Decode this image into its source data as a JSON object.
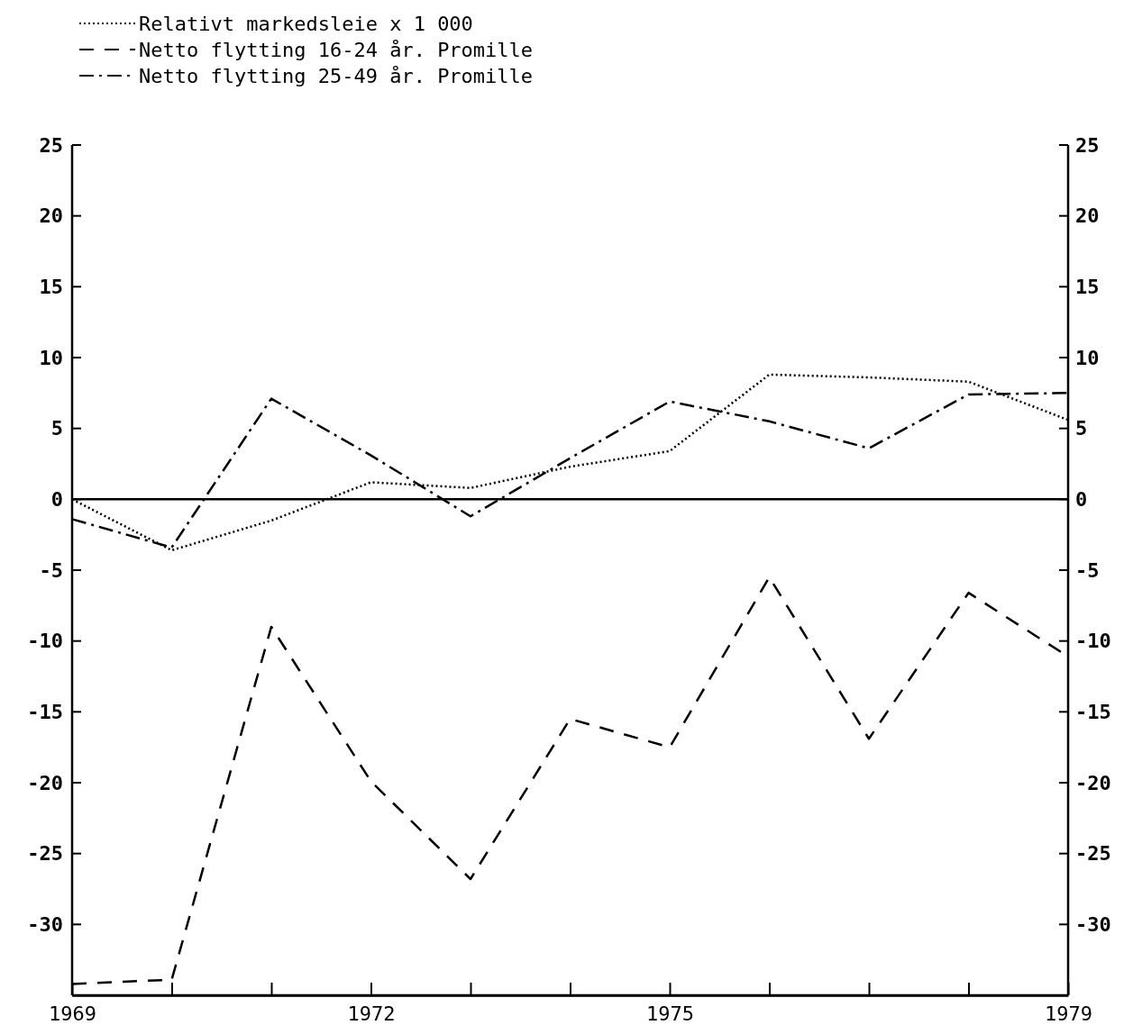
{
  "chart_data": {
    "type": "line",
    "x": [
      1969,
      1970,
      1971,
      1972,
      1973,
      1974,
      1975,
      1976,
      1977,
      1978,
      1979
    ],
    "series": [
      {
        "name": "Relativt markedsleie x 1 000",
        "color": "#000000",
        "line_style": "dotted",
        "values": [
          0,
          -3.6,
          -1.5,
          1.2,
          0.8,
          2.3,
          3.4,
          8.8,
          8.6,
          8.3,
          5.6
        ]
      },
      {
        "name": "Netto flytting 16-24 år.  Promille",
        "color": "#000000",
        "line_style": "dashed",
        "values": [
          -34.2,
          -33.9,
          -9.0,
          -19.9,
          -26.8,
          -15.5,
          -17.5,
          -5.5,
          -16.9,
          -6.6,
          -11.1
        ]
      },
      {
        "name": "Netto flytting 25-49 år.  Promille",
        "color": "#000000",
        "line_style": "dashdot",
        "values": [
          -1.4,
          -3.4,
          7.1,
          3.1,
          -1.2,
          2.9,
          6.9,
          5.5,
          3.6,
          7.4,
          7.5
        ]
      }
    ],
    "xlim": [
      1969,
      1979
    ],
    "xticks": [
      1969,
      {
        "value": 1970,
        "label": null
      },
      {
        "value": 1971,
        "label": null
      },
      1972,
      {
        "value": 1973,
        "label": null
      },
      {
        "value": 1974,
        "label": null
      },
      1975,
      {
        "value": 1976,
        "label": null
      },
      {
        "value": 1977,
        "label": null
      },
      {
        "value": 1978,
        "label": null
      },
      1979
    ],
    "ylim": [
      -35,
      25
    ],
    "yticks": [
      25,
      20,
      15,
      10,
      5,
      0,
      -5,
      -10,
      -15,
      -20,
      -25,
      -30
    ],
    "y2lim": [
      -35,
      25
    ],
    "y2ticks": [
      25,
      20,
      15,
      10,
      5,
      0,
      -5,
      -10,
      -15,
      -20,
      -25,
      -30
    ],
    "ref_lines": [
      {
        "axis": "y",
        "value": 0,
        "color": "#000000"
      }
    ],
    "legend": "top left",
    "grid": false,
    "marker": "none"
  }
}
